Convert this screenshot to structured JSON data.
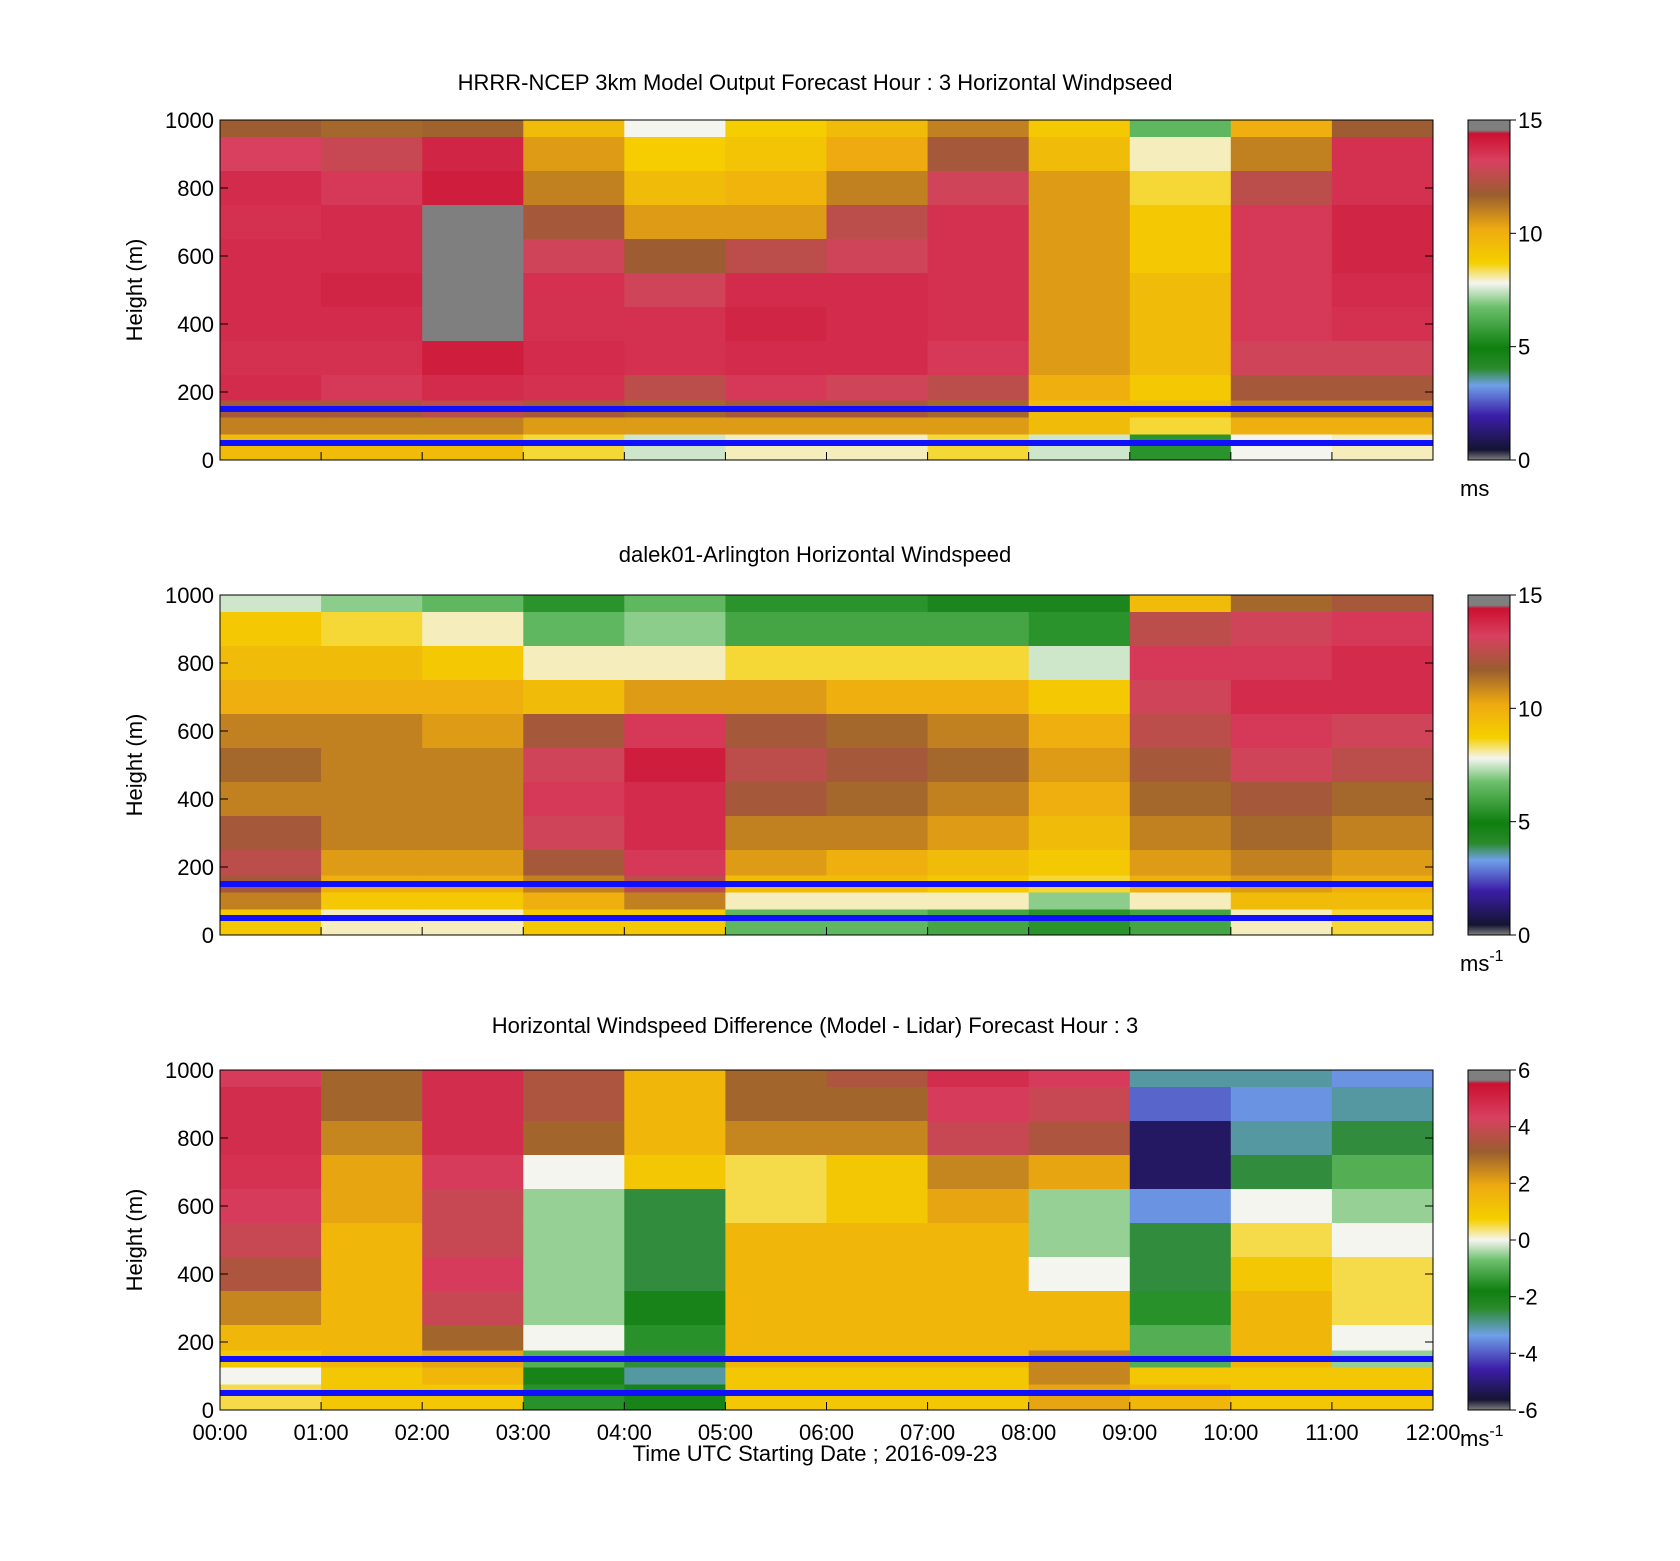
{
  "figure": {
    "background": "#ffffff",
    "line_color": "#1010ff"
  },
  "chart_data": [
    {
      "type": "heatmap",
      "title": "HRRR-NCEP 3km Model Output   Forecast Hour : 3 Horizontal Windpseed",
      "ylabel": "Height (m)",
      "xlabel": "",
      "x_ticks": [
        "00:00",
        "01:00",
        "02:00",
        "03:00",
        "04:00",
        "05:00",
        "06:00",
        "07:00",
        "08:00",
        "09:00",
        "10:00",
        "11:00",
        "12:00"
      ],
      "show_x_tick_labels": false,
      "y_ticks": [
        "0",
        "200",
        "400",
        "600",
        "800",
        "1000"
      ],
      "xlim": [
        0,
        12
      ],
      "ylim": [
        0,
        1000
      ],
      "colorbar": {
        "ticks": [
          "0",
          "5",
          "10",
          "15"
        ],
        "range": [
          0,
          15
        ],
        "unit": "ms",
        "unit_sup": "",
        "scale": "speed"
      },
      "reference_lines_m": [
        50,
        150
      ],
      "value_resolution": "hourly",
      "levels_m": [
        1000,
        900,
        800,
        700,
        600,
        500,
        400,
        300,
        200,
        150,
        100,
        50
      ],
      "columns": [
        [
          11.8,
          13.2,
          14.0,
          13.8,
          14.0,
          14.0,
          14.0,
          13.8,
          14.0,
          12.0,
          11.0,
          9.5
        ],
        [
          11.5,
          12.8,
          13.5,
          14.0,
          14.0,
          14.2,
          14.0,
          13.8,
          13.5,
          12.0,
          11.0,
          9.5
        ],
        [
          11.6,
          14.2,
          14.5,
          null,
          null,
          null,
          null,
          14.5,
          14.0,
          12.5,
          11.0,
          9.5
        ],
        [
          9.5,
          10.5,
          11.0,
          12.0,
          13.0,
          13.8,
          13.8,
          14.0,
          13.8,
          12.0,
          10.5,
          8.5
        ],
        [
          7.8,
          8.8,
          9.5,
          10.5,
          11.8,
          13.0,
          13.8,
          13.8,
          12.5,
          11.5,
          10.5,
          7.5
        ],
        [
          8.8,
          9.2,
          9.8,
          10.5,
          12.5,
          14.0,
          14.2,
          14.0,
          13.5,
          12.0,
          10.5,
          8.0
        ],
        [
          9.5,
          10.2,
          11.0,
          12.5,
          13.0,
          14.0,
          14.0,
          14.0,
          13.0,
          12.0,
          10.5,
          8.0
        ],
        [
          11.0,
          12.0,
          13.0,
          13.8,
          13.8,
          13.8,
          13.8,
          13.5,
          12.5,
          11.5,
          10.5,
          8.5
        ],
        [
          9.0,
          9.5,
          10.5,
          10.5,
          10.5,
          10.5,
          10.5,
          10.5,
          10.0,
          9.5,
          9.5,
          7.5
        ],
        [
          6.5,
          8.0,
          8.5,
          9.0,
          9.0,
          9.5,
          9.5,
          9.5,
          9.0,
          9.5,
          8.5,
          5.5
        ],
        [
          10.0,
          11.0,
          12.5,
          13.5,
          13.5,
          13.5,
          13.5,
          13.0,
          12.0,
          11.0,
          10.0,
          7.8
        ],
        [
          11.8,
          13.8,
          13.8,
          14.2,
          14.2,
          14.0,
          13.8,
          13.0,
          12.0,
          11.0,
          10.0,
          8.0
        ]
      ]
    },
    {
      "type": "heatmap",
      "title": "dalek01-Arlington  Horizontal Windspeed",
      "ylabel": "Height (m)",
      "xlabel": "",
      "x_ticks": [
        "00:00",
        "01:00",
        "02:00",
        "03:00",
        "04:00",
        "05:00",
        "06:00",
        "07:00",
        "08:00",
        "09:00",
        "10:00",
        "11:00",
        "12:00"
      ],
      "show_x_tick_labels": false,
      "y_ticks": [
        "0",
        "200",
        "400",
        "600",
        "800",
        "1000"
      ],
      "xlim": [
        0,
        12
      ],
      "ylim": [
        0,
        1000
      ],
      "colorbar": {
        "ticks": [
          "0",
          "5",
          "10",
          "15"
        ],
        "range": [
          0,
          15
        ],
        "unit": "ms",
        "unit_sup": "-1",
        "scale": "speed"
      },
      "reference_lines_m": [
        50,
        150
      ],
      "value_resolution": "hourly-mean",
      "levels_m": [
        1000,
        900,
        800,
        700,
        600,
        500,
        400,
        300,
        200,
        150,
        100,
        50
      ],
      "columns": [
        [
          7.5,
          9.0,
          9.5,
          10.0,
          11.0,
          11.5,
          11.0,
          12.0,
          12.5,
          12.0,
          11.0,
          9.0
        ],
        [
          7.0,
          8.5,
          9.5,
          10.0,
          11.0,
          11.0,
          11.0,
          11.0,
          10.5,
          10.0,
          9.0,
          8.0
        ],
        [
          6.5,
          8.0,
          9.0,
          10.0,
          10.5,
          11.0,
          11.0,
          11.0,
          10.5,
          10.0,
          9.0,
          8.0
        ],
        [
          5.5,
          6.5,
          8.0,
          9.5,
          12.0,
          13.0,
          13.5,
          13.0,
          12.0,
          11.0,
          10.0,
          9.0
        ],
        [
          6.5,
          7.0,
          8.0,
          10.5,
          13.5,
          14.5,
          14.0,
          14.0,
          13.5,
          12.5,
          11.0,
          9.0
        ],
        [
          5.5,
          6.0,
          8.5,
          10.5,
          12.0,
          12.5,
          12.0,
          11.0,
          10.5,
          9.5,
          8.0,
          6.5
        ],
        [
          5.5,
          6.0,
          8.5,
          10.0,
          11.5,
          12.0,
          11.5,
          11.0,
          10.0,
          9.5,
          8.0,
          6.5
        ],
        [
          4.5,
          6.0,
          8.5,
          10.0,
          11.0,
          11.5,
          11.0,
          10.5,
          9.5,
          9.0,
          8.0,
          6.0
        ],
        [
          4.5,
          5.5,
          7.5,
          9.0,
          10.0,
          10.5,
          10.0,
          9.5,
          9.0,
          8.5,
          7.0,
          5.5
        ],
        [
          9.5,
          12.5,
          13.5,
          13.0,
          12.5,
          12.0,
          11.5,
          11.0,
          10.5,
          10.0,
          8.0,
          6.0
        ],
        [
          11.5,
          13.0,
          13.5,
          14.0,
          13.5,
          13.0,
          12.0,
          11.5,
          11.0,
          10.5,
          9.5,
          8.0
        ],
        [
          12.0,
          13.5,
          14.0,
          14.0,
          13.0,
          12.5,
          11.5,
          11.0,
          10.5,
          10.0,
          9.5,
          8.5
        ]
      ]
    },
    {
      "type": "heatmap",
      "title": "Horizontal Windspeed Difference (Model - Lidar) Forecast Hour : 3",
      "ylabel": "Height (m)",
      "xlabel": "Time UTC  Starting Date ; 2016-09-23",
      "x_ticks": [
        "00:00",
        "01:00",
        "02:00",
        "03:00",
        "04:00",
        "05:00",
        "06:00",
        "07:00",
        "08:00",
        "09:00",
        "10:00",
        "11:00",
        "12:00"
      ],
      "show_x_tick_labels": true,
      "y_ticks": [
        "0",
        "200",
        "400",
        "600",
        "800",
        "1000"
      ],
      "xlim": [
        0,
        12
      ],
      "ylim": [
        0,
        1000
      ],
      "colorbar": {
        "ticks": [
          "-6",
          "-4",
          "-2",
          "0",
          "2",
          "4",
          "6"
        ],
        "range": [
          -6,
          6
        ],
        "unit": "ms",
        "unit_sup": "-1",
        "scale": "diff"
      },
      "reference_lines_m": [
        50,
        150
      ],
      "value_resolution": "hourly",
      "levels_m": [
        1000,
        900,
        800,
        700,
        600,
        500,
        400,
        300,
        200,
        150,
        100,
        50
      ],
      "columns": [
        [
          4.5,
          5.0,
          5.0,
          4.8,
          4.5,
          4.0,
          3.5,
          2.5,
          1.5,
          1.0,
          0.0,
          0.5
        ],
        [
          3.0,
          3.0,
          2.5,
          2.0,
          2.0,
          1.5,
          1.5,
          1.5,
          1.5,
          1.5,
          1.0,
          1.0
        ],
        [
          5.0,
          5.0,
          5.0,
          4.5,
          4.0,
          4.0,
          4.5,
          4.0,
          3.0,
          2.0,
          1.5,
          1.0
        ],
        [
          3.5,
          3.5,
          3.0,
          0.0,
          -0.5,
          -0.5,
          -0.5,
          -0.5,
          0.0,
          -1.0,
          -2.0,
          -1.5
        ],
        [
          1.5,
          1.5,
          1.5,
          1.0,
          -2.5,
          -2.5,
          -2.5,
          -2.0,
          -1.5,
          -2.5,
          -3.0,
          -2.0
        ],
        [
          3.0,
          3.0,
          2.5,
          0.5,
          0.5,
          1.5,
          1.5,
          1.5,
          1.5,
          1.5,
          1.0,
          1.0
        ],
        [
          3.5,
          3.0,
          2.5,
          1.0,
          1.0,
          1.5,
          1.5,
          1.5,
          1.5,
          1.5,
          1.0,
          1.0
        ],
        [
          5.0,
          4.5,
          4.0,
          2.5,
          2.0,
          1.5,
          1.5,
          1.5,
          1.5,
          1.5,
          1.0,
          1.0
        ],
        [
          4.5,
          4.0,
          3.5,
          2.0,
          -0.5,
          -0.5,
          0.0,
          1.5,
          1.5,
          2.5,
          2.5,
          2.0
        ],
        [
          -3.0,
          -4.0,
          -5.5,
          -5.5,
          -3.5,
          -2.5,
          -2.5,
          -1.5,
          -1.0,
          -1.0,
          1.0,
          1.5
        ],
        [
          -3.0,
          -3.5,
          -3.0,
          -2.5,
          0.0,
          0.5,
          1.0,
          1.5,
          1.5,
          1.5,
          1.0,
          1.0
        ],
        [
          -3.5,
          -3.0,
          -2.5,
          -1.0,
          -0.5,
          0.0,
          0.5,
          0.5,
          0.0,
          -0.5,
          1.0,
          1.0
        ]
      ]
    }
  ]
}
